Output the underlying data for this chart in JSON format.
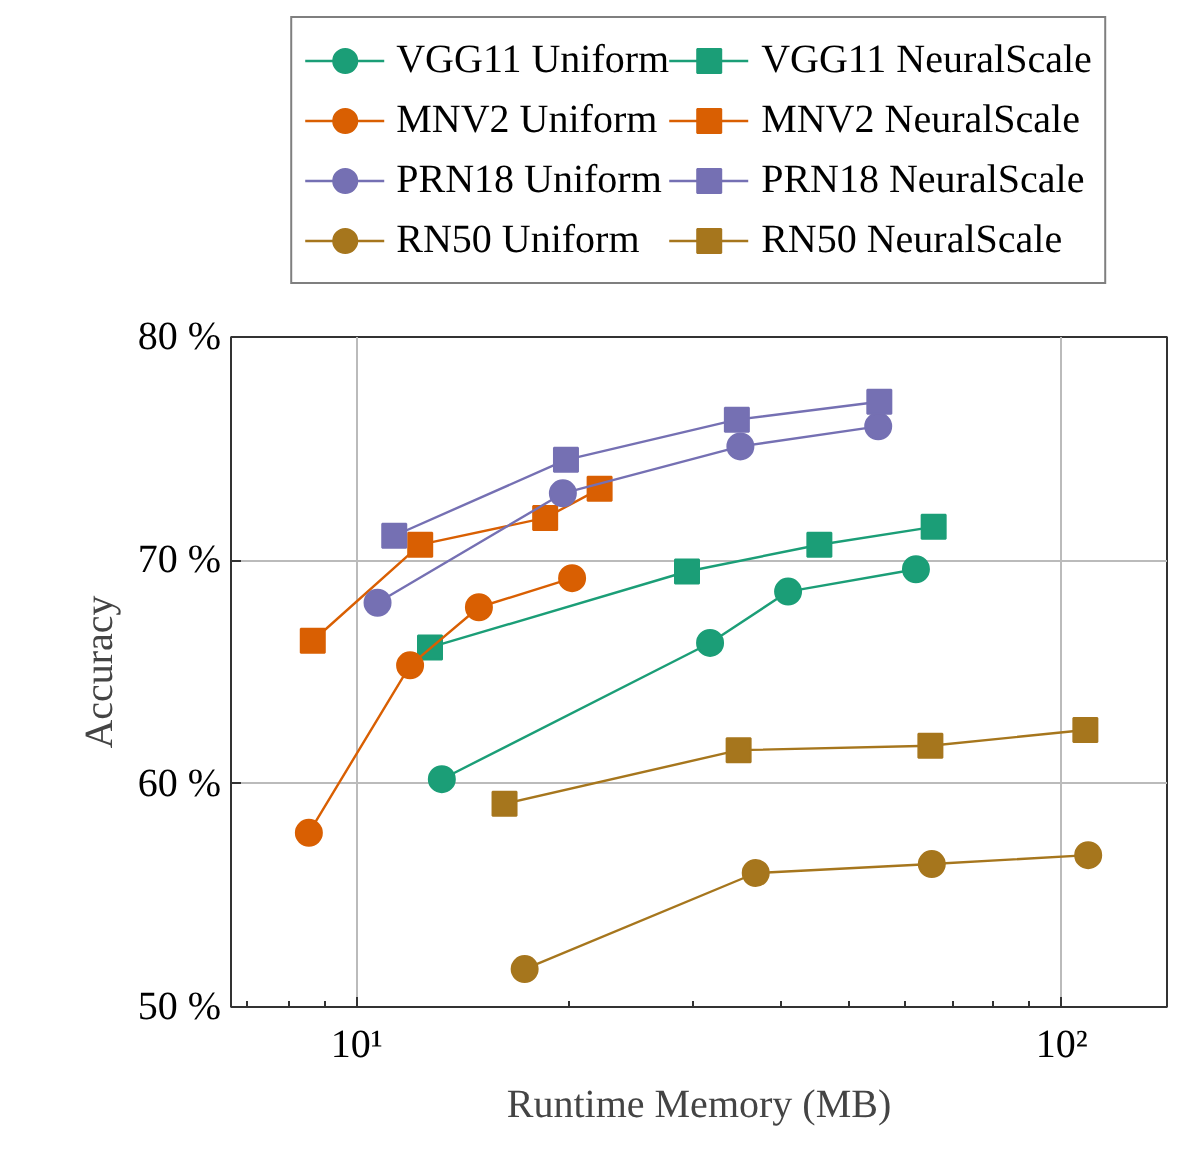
{
  "chart_data": {
    "type": "line",
    "xlabel": "Runtime Memory (MB)",
    "ylabel": "Accuracy",
    "log": "x",
    "grid": true,
    "legend": "top",
    "xlim": [
      6.63,
      141
    ],
    "ylim": [
      50,
      80
    ],
    "xticks": [
      {
        "value": 10,
        "label": "10¹"
      },
      {
        "value": 100,
        "label": "10²"
      }
    ],
    "yticks": [
      {
        "value": 50,
        "label": "50 %"
      },
      {
        "value": 60,
        "label": "60 %"
      },
      {
        "value": 70,
        "label": "70 %"
      },
      {
        "value": 80,
        "label": "80 %"
      }
    ],
    "series": [
      {
        "name": "VGG11 Uniform",
        "color": "#1b9e77",
        "marker": "circle",
        "x": [
          13.2,
          31.7,
          40.9,
          62.1
        ],
        "values": [
          60.2,
          66.3,
          68.6,
          69.6
        ]
      },
      {
        "name": "VGG11 NeuralScale",
        "color": "#1b9e77",
        "marker": "square",
        "x": [
          12.7,
          29.4,
          45.3,
          65.8
        ],
        "values": [
          66.1,
          69.5,
          70.7,
          71.5
        ]
      },
      {
        "name": "MNV2 Uniform",
        "color": "#d95f02",
        "marker": "circle",
        "x": [
          8.55,
          11.9,
          14.9,
          20.2
        ],
        "values": [
          57.8,
          65.3,
          67.9,
          69.2
        ]
      },
      {
        "name": "MNV2 NeuralScale",
        "color": "#d95f02",
        "marker": "square",
        "x": [
          8.66,
          12.3,
          18.5,
          22.1
        ],
        "values": [
          66.4,
          70.7,
          71.9,
          73.2
        ]
      },
      {
        "name": "PRN18 Uniform",
        "color": "#7570b3",
        "marker": "circle",
        "x": [
          10.7,
          19.6,
          35.0,
          54.9
        ],
        "values": [
          68.1,
          73.0,
          75.1,
          76.0
        ]
      },
      {
        "name": "PRN18 NeuralScale",
        "color": "#7570b3",
        "marker": "square",
        "x": [
          11.3,
          19.8,
          34.6,
          55.1
        ],
        "values": [
          71.1,
          74.5,
          76.3,
          77.1
        ]
      },
      {
        "name": "RN50 Uniform",
        "color": "#a6761d",
        "marker": "circle",
        "x": [
          17.3,
          36.8,
          65.4,
          109
        ],
        "values": [
          51.7,
          56.0,
          56.4,
          56.8
        ]
      },
      {
        "name": "RN50 NeuralScale",
        "color": "#a6761d",
        "marker": "square",
        "x": [
          16.2,
          34.8,
          65.1,
          108
        ],
        "values": [
          59.1,
          61.5,
          61.7,
          62.4
        ]
      }
    ]
  }
}
